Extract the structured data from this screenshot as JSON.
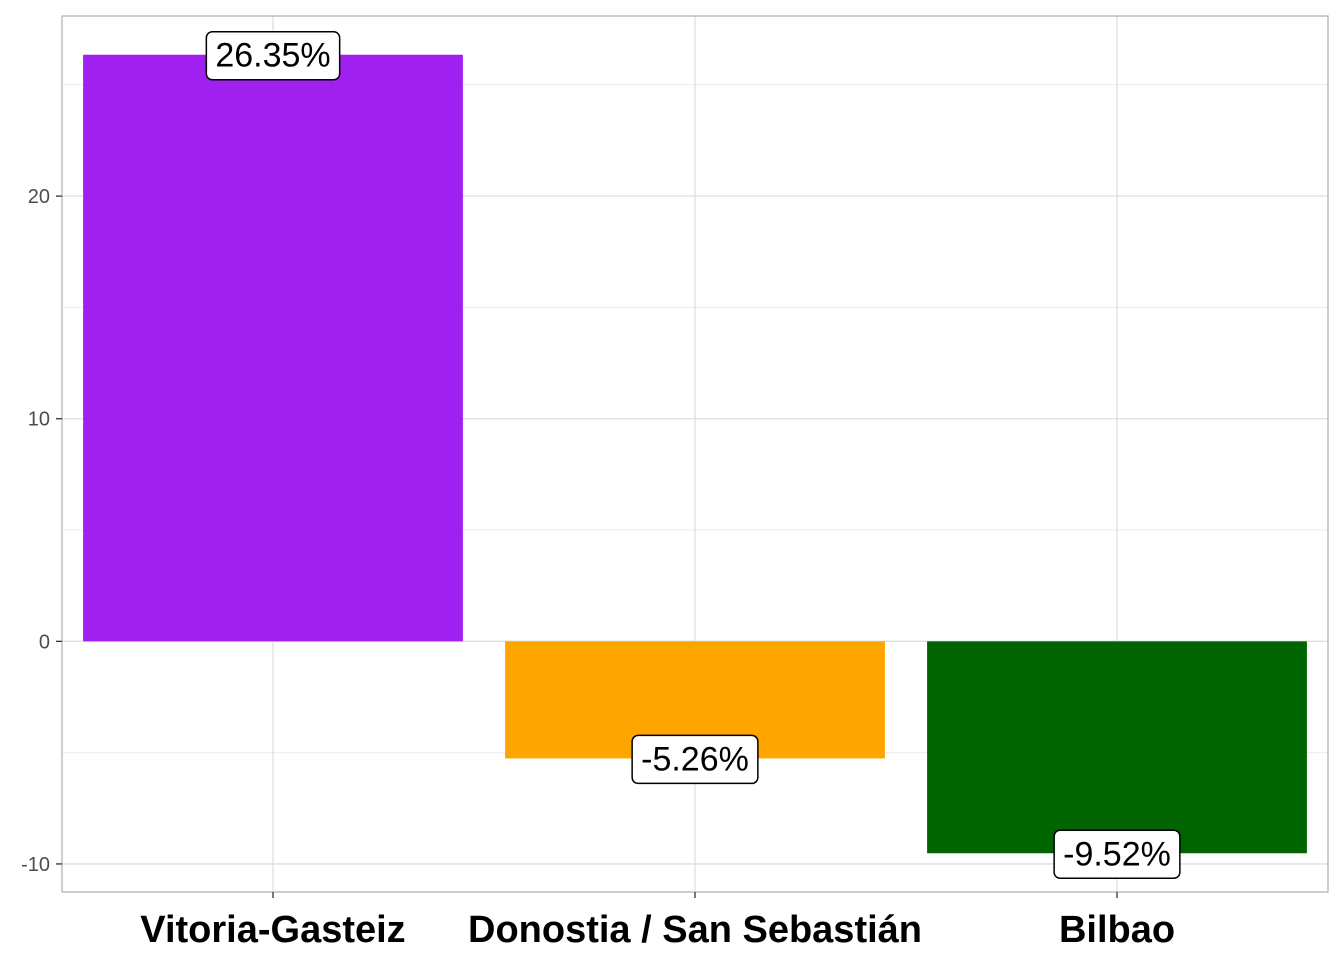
{
  "chart_data": {
    "type": "bar",
    "title": "",
    "xlabel": "",
    "ylabel": "",
    "categories": [
      "Vitoria-Gasteiz",
      "Donostia / San Sebastián",
      "Bilbao"
    ],
    "values": [
      26.35,
      -5.26,
      -9.52
    ],
    "data_labels": [
      "26.35%",
      "-5.26%",
      "-9.52%"
    ],
    "bar_colors": [
      "#a020f0",
      "#ffa500",
      "#006400"
    ],
    "ylim": [
      -11.26,
      28.09
    ],
    "yticks": [
      -10,
      0,
      10,
      20
    ],
    "ytick_labels": [
      "-10",
      "0",
      "10",
      "20"
    ],
    "grid": true,
    "legend": "none",
    "panel_border_color": "#b3b3b3",
    "grid_color": "#dedede"
  }
}
